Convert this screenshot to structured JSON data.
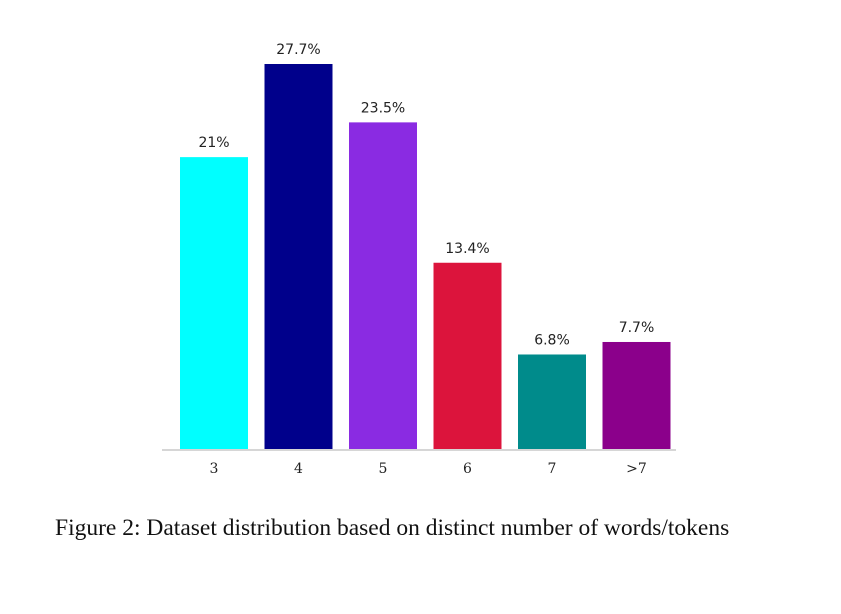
{
  "chart_data": {
    "type": "bar",
    "categories": [
      "3",
      "4",
      "5",
      "6",
      "7",
      ">7"
    ],
    "values": [
      21,
      27.7,
      23.5,
      13.4,
      6.8,
      7.7
    ],
    "value_labels": [
      "21%",
      "27.7%",
      "23.5%",
      "13.4%",
      "6.8%",
      "7.7%"
    ],
    "colors": [
      "#00FFFF",
      "#00008B",
      "#8A2BE2",
      "#DC143C",
      "#008B8B",
      "#8B008B"
    ],
    "title": "",
    "xlabel": "",
    "ylabel": "",
    "ylim": [
      0,
      30
    ],
    "grid": false,
    "legend": "none"
  },
  "caption": {
    "text": "Figure 2: Dataset distribution based on distinct number of words/tokens"
  }
}
